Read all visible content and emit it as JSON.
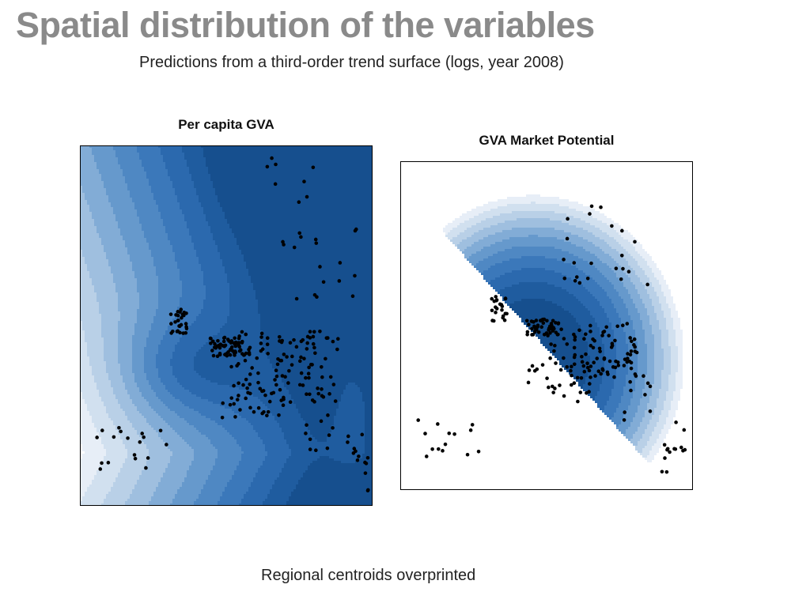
{
  "slide": {
    "title": "Spatial distribution of the variables",
    "subtitle": "Predictions from a third-order trend surface (logs, year 2008)",
    "footer": "Regional centroids overprinted"
  },
  "colors": {
    "title_gray": "#8a8a8a",
    "palette_blues": [
      "#ffffff",
      "#e7eef7",
      "#d1e0ef",
      "#b9d0e7",
      "#9fbfdf",
      "#82acd6",
      "#6699cc",
      "#4f88c3",
      "#3b78ba",
      "#2b69ae",
      "#1f5c9f",
      "#164f8e"
    ],
    "point_color": "#000000"
  },
  "chart_data": [
    {
      "type": "heatmap",
      "title": "Per capita GVA",
      "description_overlay": "scatter",
      "colormap": "blues",
      "points_marker": "filled-diamond"
    },
    {
      "type": "heatmap",
      "title": "GVA Market Potential",
      "description_overlay": "scatter",
      "colormap": "blues",
      "points_marker": "filled-diamond"
    }
  ]
}
